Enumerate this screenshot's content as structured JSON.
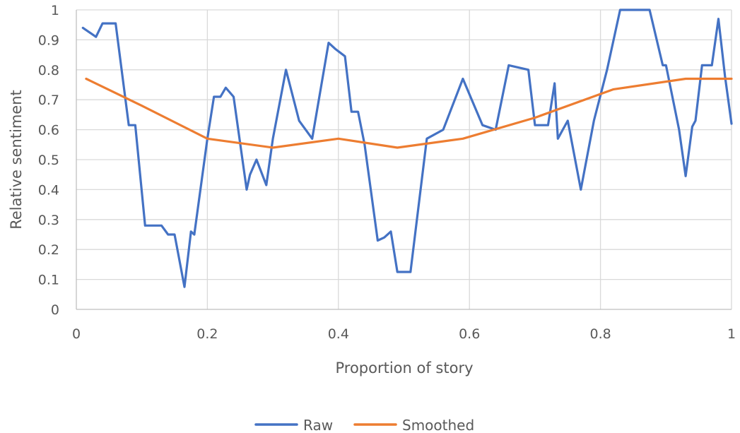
{
  "chart_data": {
    "type": "line",
    "title": "",
    "xlabel": "Proportion of story",
    "ylabel": "Relative sentiment",
    "xlim": [
      0,
      1
    ],
    "ylim": [
      0,
      1
    ],
    "x_ticks": [
      0,
      0.2,
      0.4,
      0.6,
      0.8,
      1
    ],
    "x_tick_labels": [
      "0",
      "0.2",
      "0.4",
      "0.6",
      "0.8",
      "1"
    ],
    "y_ticks": [
      0,
      0.1,
      0.2,
      0.3,
      0.4,
      0.5,
      0.6,
      0.7,
      0.8,
      0.9,
      1
    ],
    "y_tick_labels": [
      "0",
      "0.1",
      "0.2",
      "0.3",
      "0.4",
      "0.5",
      "0.6",
      "0.7",
      "0.8",
      "0.9",
      "1"
    ],
    "grid": true,
    "legend_position": "bottom",
    "series": [
      {
        "name": "Raw",
        "color": "#4472c4",
        "x": [
          0.01,
          0.03,
          0.04,
          0.05,
          0.06,
          0.08,
          0.09,
          0.105,
          0.115,
          0.13,
          0.14,
          0.15,
          0.165,
          0.175,
          0.18,
          0.2,
          0.21,
          0.22,
          0.228,
          0.24,
          0.26,
          0.265,
          0.275,
          0.29,
          0.3,
          0.32,
          0.34,
          0.36,
          0.385,
          0.395,
          0.41,
          0.42,
          0.43,
          0.44,
          0.46,
          0.47,
          0.48,
          0.49,
          0.5,
          0.51,
          0.535,
          0.56,
          0.59,
          0.62,
          0.64,
          0.66,
          0.69,
          0.7,
          0.71,
          0.72,
          0.73,
          0.735,
          0.745,
          0.75,
          0.77,
          0.79,
          0.81,
          0.83,
          0.84,
          0.85,
          0.875,
          0.895,
          0.9,
          0.92,
          0.93,
          0.94,
          0.945,
          0.955,
          0.97,
          0.98,
          0.99,
          1.0
        ],
        "values": [
          0.94,
          0.91,
          0.955,
          0.955,
          0.955,
          0.615,
          0.615,
          0.28,
          0.28,
          0.28,
          0.25,
          0.25,
          0.075,
          0.26,
          0.25,
          0.57,
          0.71,
          0.71,
          0.74,
          0.71,
          0.4,
          0.45,
          0.5,
          0.415,
          0.57,
          0.8,
          0.63,
          0.57,
          0.89,
          0.87,
          0.845,
          0.66,
          0.66,
          0.55,
          0.23,
          0.24,
          0.26,
          0.125,
          0.125,
          0.125,
          0.57,
          0.6,
          0.77,
          0.615,
          0.6,
          0.815,
          0.8,
          0.615,
          0.615,
          0.615,
          0.755,
          0.57,
          0.61,
          0.63,
          0.4,
          0.63,
          0.8,
          1.0,
          1.0,
          1.0,
          1.0,
          0.815,
          0.815,
          0.6,
          0.445,
          0.61,
          0.63,
          0.815,
          0.815,
          0.97,
          0.78,
          0.62
        ]
      },
      {
        "name": "Smoothed",
        "color": "#ed7d31",
        "x": [
          0.015,
          0.1,
          0.2,
          0.3,
          0.4,
          0.49,
          0.59,
          0.7,
          0.82,
          0.93,
          1.0
        ],
        "values": [
          0.77,
          0.68,
          0.57,
          0.54,
          0.57,
          0.54,
          0.57,
          0.64,
          0.735,
          0.77,
          0.77
        ]
      }
    ]
  }
}
